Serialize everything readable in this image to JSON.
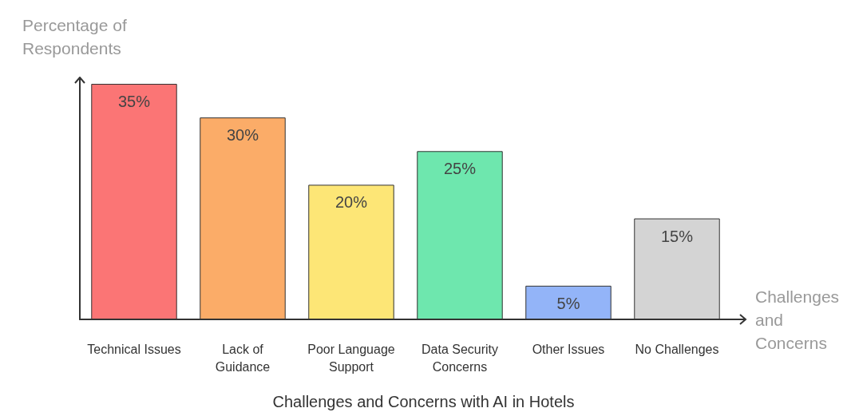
{
  "chart_data": {
    "type": "bar",
    "title": "Challenges and Concerns with AI in Hotels",
    "xlabel": "Challenges\nand\nConcerns",
    "ylabel": "Percentage of\nRespondents",
    "categories": [
      "Technical Issues",
      "Lack of\nGuidance",
      "Poor Language\nSupport",
      "Data Security\nConcerns",
      "Other Issues",
      "No Challenges"
    ],
    "values": [
      35,
      30,
      20,
      25,
      5,
      15
    ],
    "value_labels": [
      "35%",
      "30%",
      "20%",
      "25%",
      "5%",
      "15%"
    ],
    "colors": [
      "#fb7575",
      "#fbac68",
      "#fde676",
      "#6ee7ae",
      "#93b4f8",
      "#d4d4d4"
    ],
    "grid": false
  }
}
